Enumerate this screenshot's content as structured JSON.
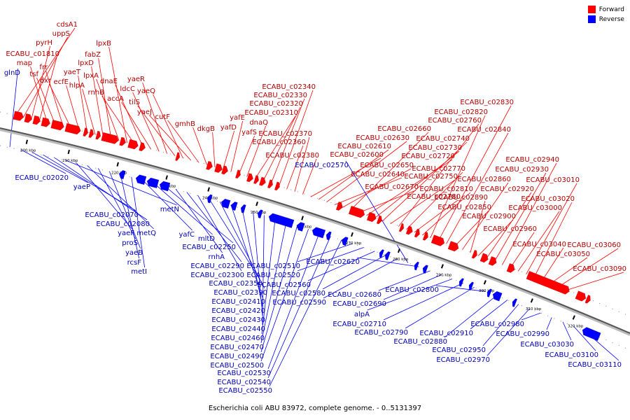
{
  "legend": {
    "forward_label": "Forward",
    "reverse_label": "Reverse",
    "forward_color": "#ff0000",
    "reverse_color": "#0000ff"
  },
  "caption": "Escherichia coli ABU 83972, complete genome. - 0..5131397",
  "ticks": [
    "200 kbp",
    "210 kbp",
    "220 kbp",
    "230 kbp",
    "240 kbp",
    "250 kbp",
    "260 kbp",
    "270 kbp",
    "280 kbp",
    "290 kbp",
    "300 kbp",
    "310 kbp",
    "320 kbp"
  ],
  "forward_genes": [
    "cdsA1",
    "uppS",
    "pyrH",
    "ECABU_c01810",
    "map",
    "tsf",
    "frr",
    "dxr",
    "ecfE",
    "yaeT",
    "hlpA",
    "lpxD",
    "fabZ",
    "lpxA",
    "lpxB",
    "rnhB",
    "dnaE",
    "accA",
    "ldcC",
    "yaeR",
    "tilS",
    "yaeQ",
    "yaeJ",
    "cutF",
    "gmhB",
    "dkgB",
    "yafD",
    "yafE",
    "yafS",
    "dnaQ",
    "ECABU_c02310",
    "ECABU_c02320",
    "ECABU_c02330",
    "ECABU_c02340",
    "ECABU_c02360",
    "ECABU_c02370",
    "ECABU_c02380",
    "ECABU_c02600",
    "ECABU_c02610",
    "ECABU_c02630",
    "ECABU_c02640",
    "ECABU_c02650",
    "ECABU_c02660",
    "ECABU_c02670",
    "ECABU_c02720",
    "ECABU_c02730",
    "ECABU_c02740",
    "ECABU_c02750",
    "ECABU_c02760",
    "ECABU_c02770",
    "ECABU_c02780",
    "ECABU_c02810",
    "ECABU_c02820",
    "ECABU_c02830",
    "ECABU_c02840",
    "ECABU_c02850",
    "ECABU_c02860",
    "ECABU_c02890",
    "ECABU_c02900",
    "ECABU_c02920",
    "ECABU_c02930",
    "ECABU_c02940",
    "ECABU_c02960",
    "ECABU_c03000",
    "ECABU_c03010",
    "ECABU_c03020",
    "ECABU_c03040",
    "ECABU_c03050",
    "ECABU_c03060",
    "ECABU_c03090"
  ],
  "reverse_genes": [
    "glnD",
    "ECABU_c02020",
    "yaeP",
    "ECABU_c02070",
    "ECABU_c02080",
    "metN",
    "yaeF",
    "metQ",
    "proS",
    "yaeB",
    "rcsF",
    "metI",
    "yafC",
    "mltD",
    "ECABU_c02250",
    "rnhA",
    "ECABU_c02290",
    "ECABU_c02300",
    "ECABU_c02350",
    "ECABU_c02390",
    "ECABU_c02410",
    "ECABU_c02420",
    "ECABU_c02430",
    "ECABU_c02440",
    "ECABU_c02460",
    "ECABU_c02470",
    "ECABU_c02490",
    "ECABU_c02500",
    "ECABU_c02530",
    "ECABU_c02540",
    "ECABU_c02550",
    "ECABU_c02510",
    "ECABU_c02520",
    "ECABU_c02560",
    "ECABU_c02580",
    "ECABU_c02590",
    "ECABU_c02570",
    "ECABU_c02620",
    "ECABU_c02680",
    "ECABU_c02690",
    "alpA",
    "ECABU_c02710",
    "ECABU_c02790",
    "ECABU_c02800",
    "ECABU_c02880",
    "ECABU_c02910",
    "ECABU_c02950",
    "ECABU_c02970",
    "ECABU_c02980",
    "ECABU_c02990",
    "ECABU_c03030",
    "ECABU_c03100",
    "ECABU_c03110"
  ]
}
